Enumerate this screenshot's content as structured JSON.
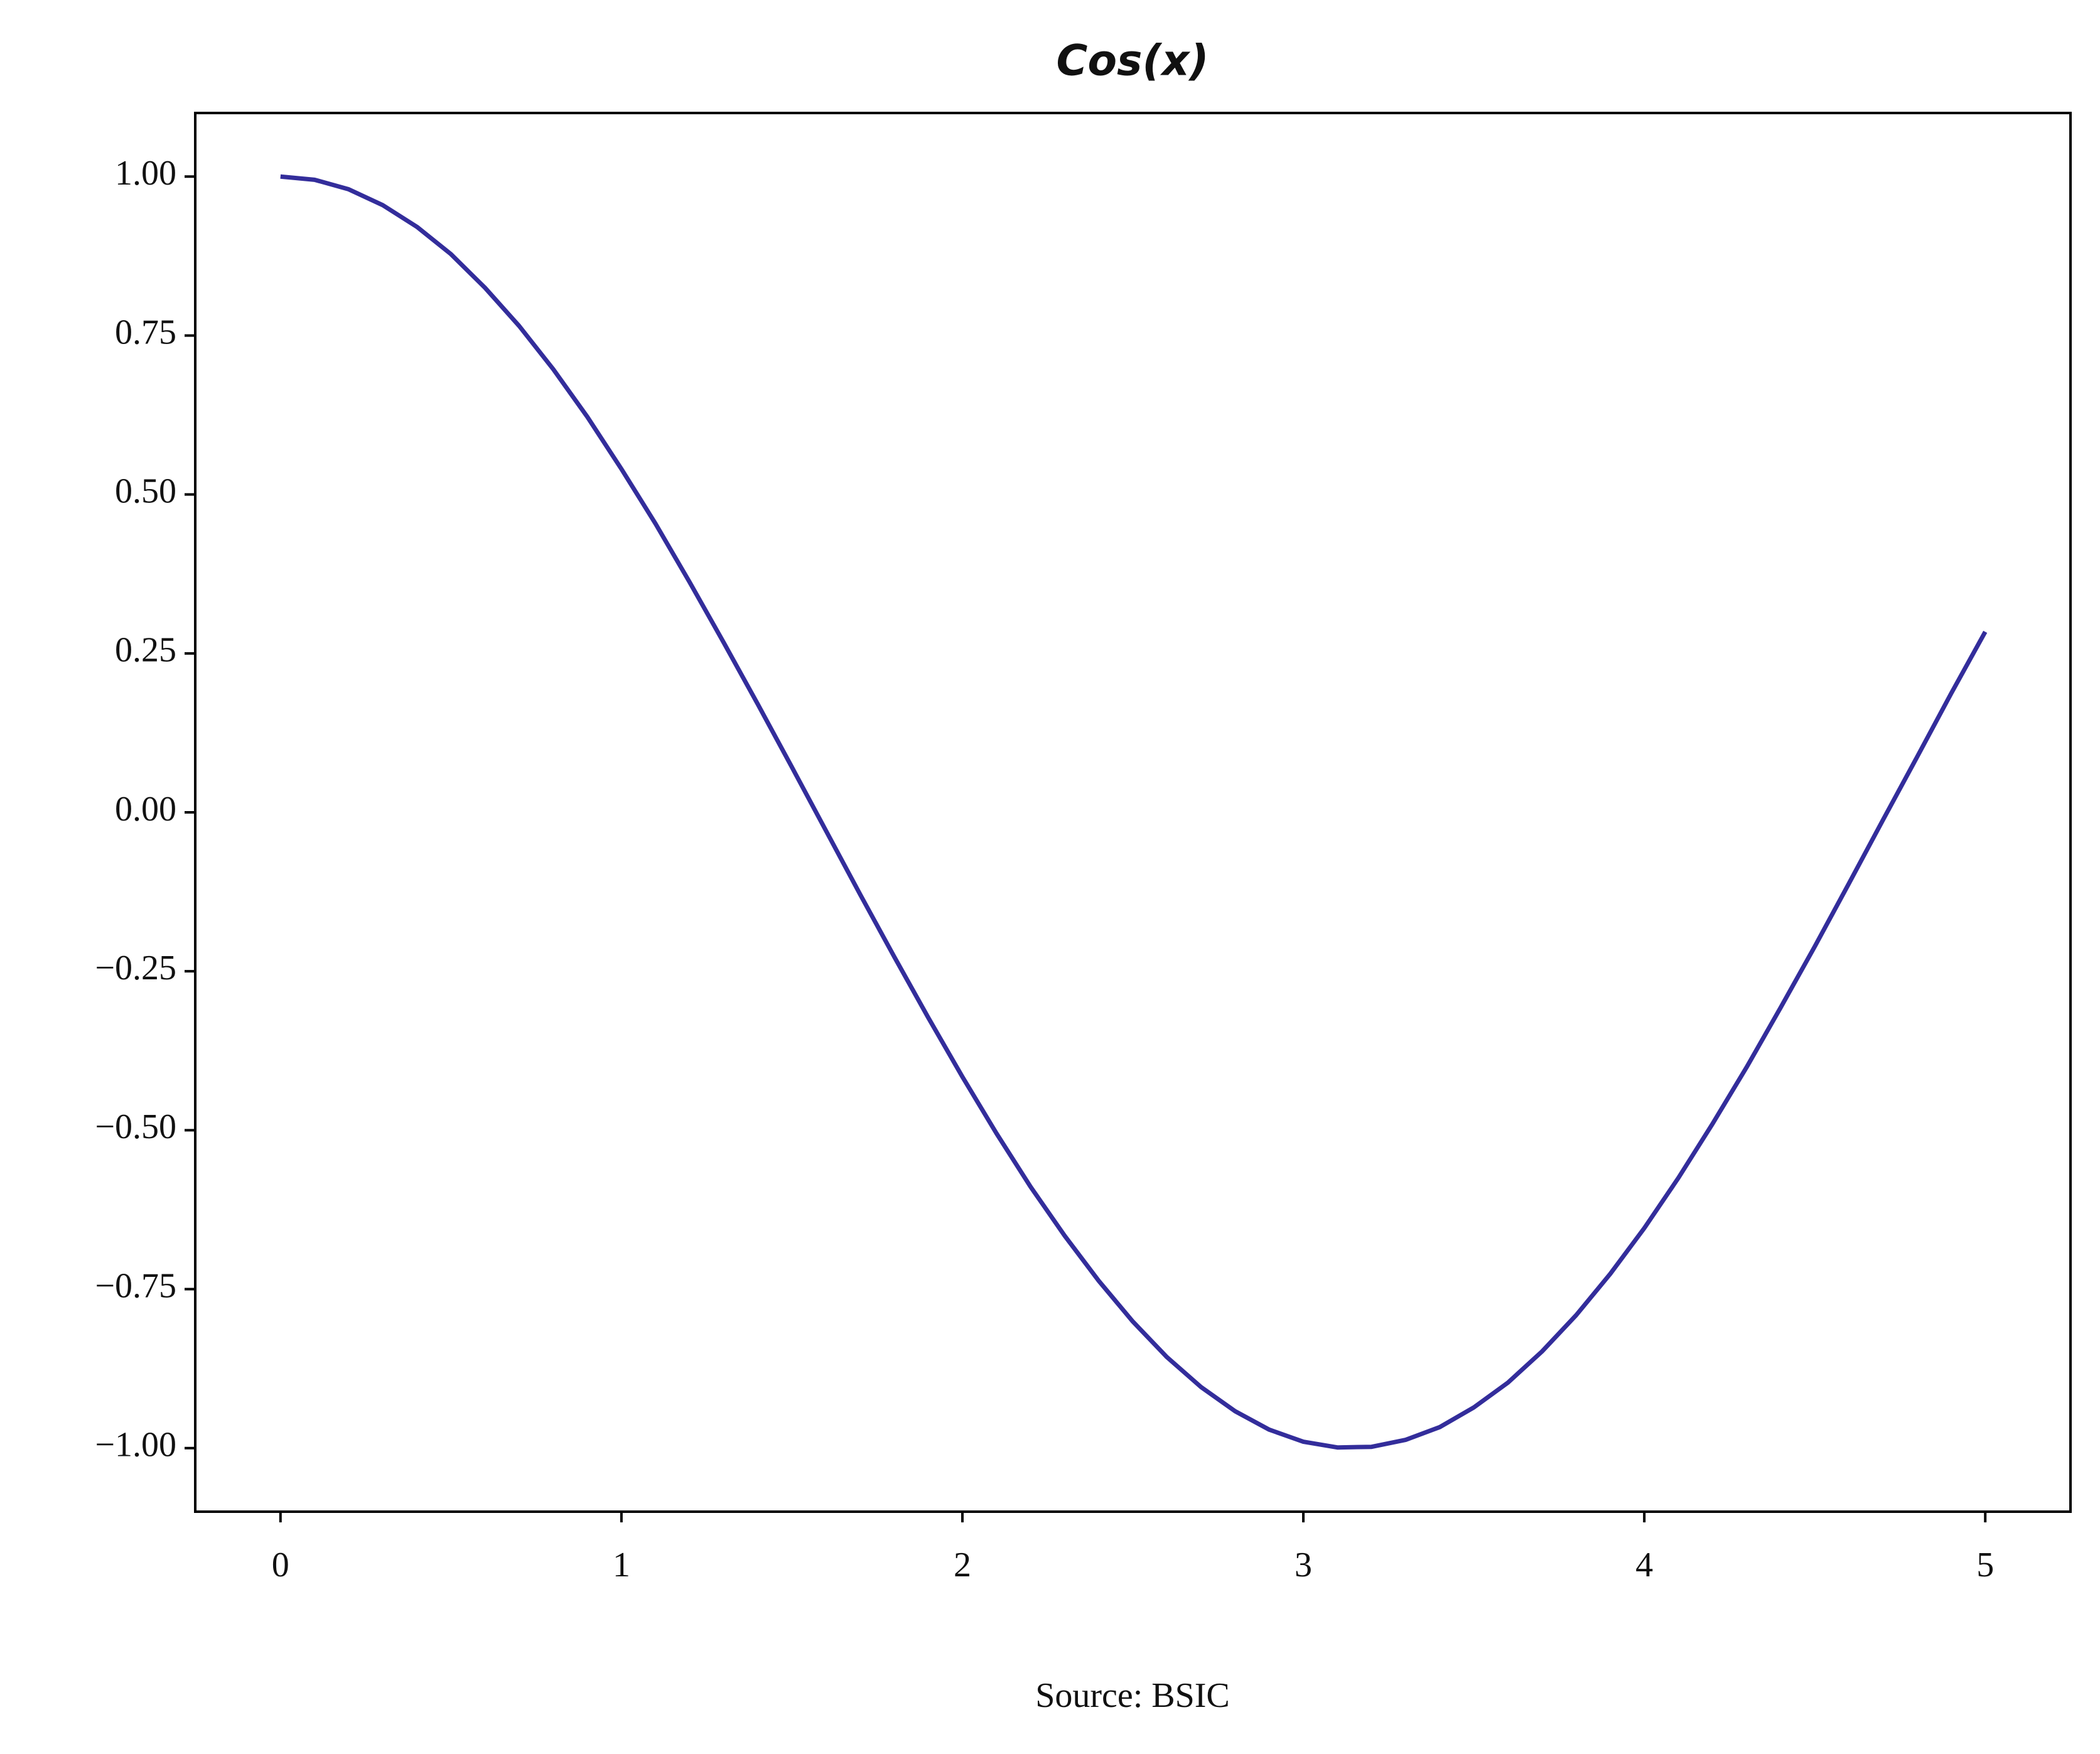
{
  "chart_data": {
    "type": "line",
    "title": "Cos(x)",
    "caption": "Source: BSIC",
    "x": [
      0,
      0.1,
      0.2,
      0.3,
      0.4,
      0.5,
      0.6,
      0.7,
      0.8,
      0.9,
      1.0,
      1.1,
      1.2,
      1.3,
      1.4,
      1.5,
      1.6,
      1.7,
      1.8,
      1.9,
      2.0,
      2.1,
      2.2,
      2.3,
      2.4,
      2.5,
      2.6,
      2.7,
      2.8,
      2.9,
      3.0,
      3.1,
      3.2,
      3.3,
      3.4,
      3.5,
      3.6,
      3.7,
      3.8,
      3.9,
      4.0,
      4.1,
      4.2,
      4.3,
      4.4,
      4.5,
      4.6,
      4.7,
      4.8,
      4.9,
      5.0
    ],
    "values": [
      1.0,
      0.995,
      0.98,
      0.955,
      0.921,
      0.878,
      0.825,
      0.765,
      0.697,
      0.622,
      0.54,
      0.454,
      0.362,
      0.267,
      0.17,
      0.071,
      -0.029,
      -0.129,
      -0.227,
      -0.323,
      -0.416,
      -0.505,
      -0.589,
      -0.666,
      -0.737,
      -0.801,
      -0.857,
      -0.904,
      -0.942,
      -0.971,
      -0.99,
      -0.999,
      -0.998,
      -0.987,
      -0.967,
      -0.936,
      -0.897,
      -0.848,
      -0.791,
      -0.726,
      -0.654,
      -0.575,
      -0.49,
      -0.401,
      -0.307,
      -0.211,
      -0.112,
      -0.012,
      0.087,
      0.187,
      0.284
    ],
    "color": "#332d9b",
    "xlim": [
      -0.25,
      5.25
    ],
    "xticks": [
      0,
      1,
      2,
      3,
      4,
      5
    ],
    "ylim": [
      -1.1,
      1.1
    ],
    "yticks": [
      {
        "value": -1,
        "label": "−1.00"
      },
      {
        "value": -0.75,
        "label": "−0.75"
      },
      {
        "value": -0.5,
        "label": "−0.50"
      },
      {
        "value": -0.25,
        "label": "−0.25"
      },
      {
        "value": 0,
        "label": "0.00"
      },
      {
        "value": 0.25,
        "label": "0.25"
      },
      {
        "value": 0.5,
        "label": "0.50"
      },
      {
        "value": 0.75,
        "label": "0.75"
      },
      {
        "value": 1,
        "label": "1.00"
      }
    ],
    "grid": false
  }
}
